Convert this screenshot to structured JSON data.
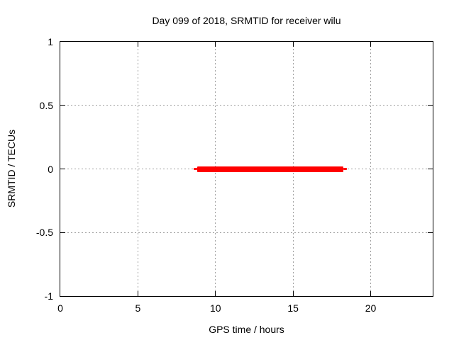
{
  "chart_data": {
    "type": "line",
    "title": "Day 099 of 2018, SRMTID for receiver wilu",
    "xlabel": "GPS time / hours",
    "ylabel": "SRMTID / TECUs",
    "xlim": [
      0,
      24
    ],
    "ylim": [
      -1,
      1
    ],
    "xticks": [
      0,
      5,
      10,
      15,
      20
    ],
    "xtick_labels": [
      "0",
      "5",
      "10",
      "15",
      "20"
    ],
    "yticks": [
      -1,
      -0.5,
      0,
      0.5,
      1
    ],
    "ytick_labels": [
      "-1",
      "-0.5",
      "0",
      "0.5",
      "1"
    ],
    "grid": "dotted",
    "grid_color": "#a0a0a0",
    "axis_color": "#000000",
    "background_color": "#ffffff",
    "legend": "none",
    "series": [
      {
        "name": "SRMTID",
        "color": "#ff0000",
        "y_value": 0,
        "x_start": 8.6,
        "x_end": 18.45,
        "segments": [
          {
            "x_start": 8.6,
            "x_end": 8.8,
            "thickness_px": 3
          },
          {
            "x_start": 8.8,
            "x_end": 18.25,
            "thickness_px": 8
          },
          {
            "x_start": 18.25,
            "x_end": 18.45,
            "thickness_px": 3
          }
        ]
      }
    ]
  }
}
